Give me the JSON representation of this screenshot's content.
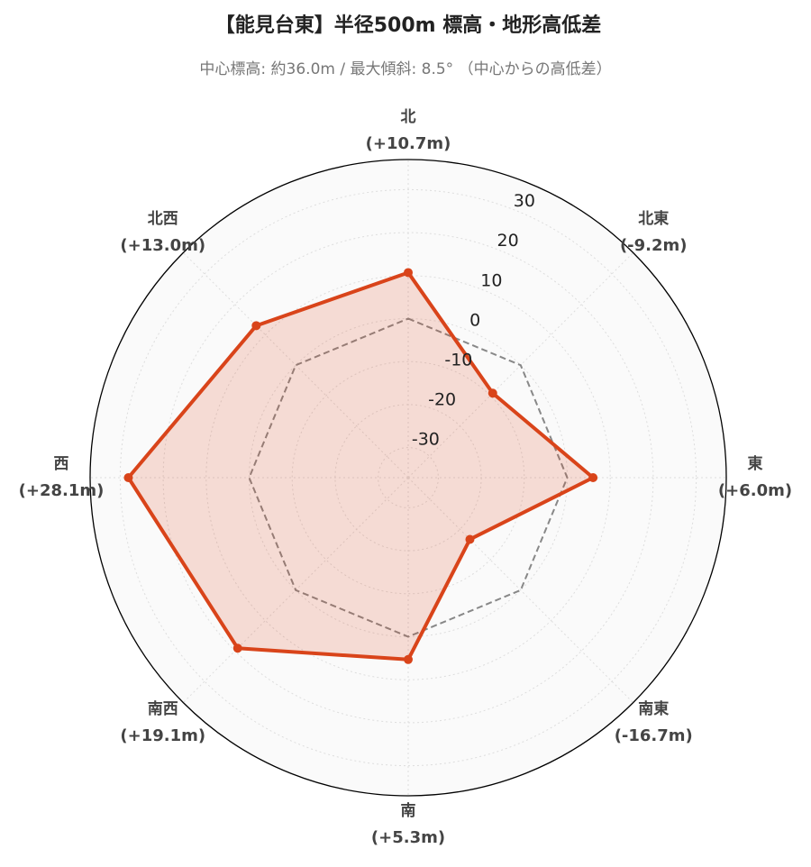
{
  "chart_data": {
    "type": "radar",
    "title": "【能見台東】半径500m 標高・地形高低差",
    "subtitle": "中心標高: 約36.0m / 最大傾斜: 8.5° （中心からの高低差）",
    "categories": [
      "北",
      "北東",
      "東",
      "南東",
      "南",
      "南西",
      "西",
      "北西"
    ],
    "values": [
      10.7,
      -9.2,
      6.0,
      -16.7,
      5.3,
      19.1,
      28.1,
      13.0
    ],
    "value_labels": [
      "(+10.7m)",
      "(-9.2m)",
      "(+6.0m)",
      "(-16.7m)",
      "(+5.3m)",
      "(+19.1m)",
      "(+28.1m)",
      "(+13.0m)"
    ],
    "color": "#d9441a",
    "baseline": 0,
    "ylim": [
      -37,
      37
    ],
    "yticks": [
      -30,
      -20,
      -10,
      0,
      10,
      20,
      30
    ],
    "grid": true
  }
}
